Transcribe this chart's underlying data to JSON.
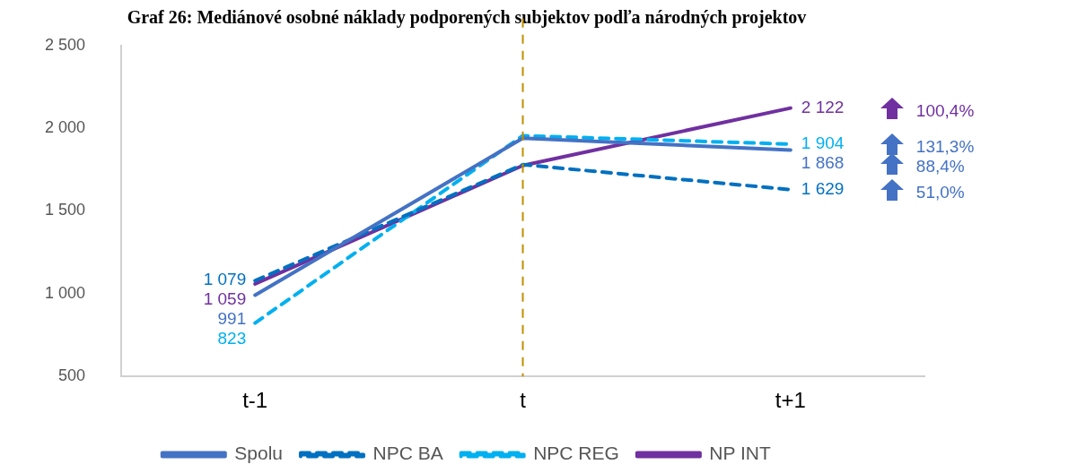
{
  "chart_data": {
    "type": "line",
    "title": "Graf 26: Mediánové osobné náklady podporených subjektov podľa národných projektov",
    "categories": [
      "t-1",
      "t",
      "t+1"
    ],
    "series": [
      {
        "name": "Spolu",
        "color": "#4472c4",
        "line_style": "solid",
        "values": [
          991,
          1940,
          1868
        ],
        "value_labels": [
          "991",
          null,
          "1 868"
        ]
      },
      {
        "name": "NPC BA",
        "color": "#0070c0",
        "line_style": "dashed",
        "values": [
          1079,
          1780,
          1629
        ],
        "value_labels": [
          "1 079",
          null,
          "1 629"
        ]
      },
      {
        "name": "NPC REG",
        "color": "#00b0f0",
        "line_style": "dashed",
        "values": [
          823,
          1955,
          1904
        ],
        "value_labels": [
          "823",
          null,
          "1 904"
        ]
      },
      {
        "name": "NP INT",
        "color": "#7030a0",
        "line_style": "solid",
        "values": [
          1059,
          1775,
          2122
        ],
        "value_labels": [
          "1 059",
          null,
          "2 122"
        ]
      }
    ],
    "ylim": [
      500,
      2500
    ],
    "yticks": [
      {
        "value": 500,
        "label": "500"
      },
      {
        "value": 1000,
        "label": "1 000"
      },
      {
        "value": 1500,
        "label": "1 500"
      },
      {
        "value": 2000,
        "label": "2 000"
      },
      {
        "value": 2500,
        "label": "2 500"
      }
    ],
    "ref_lines": [
      {
        "axis": "x",
        "value": "t",
        "color": "#c09000",
        "line_style": "dashed"
      }
    ],
    "annotations": [
      "100,4%",
      "131,3%",
      "88,4%",
      "51,0%"
    ],
    "grid": false,
    "legend": "bottom",
    "marker": "none"
  }
}
